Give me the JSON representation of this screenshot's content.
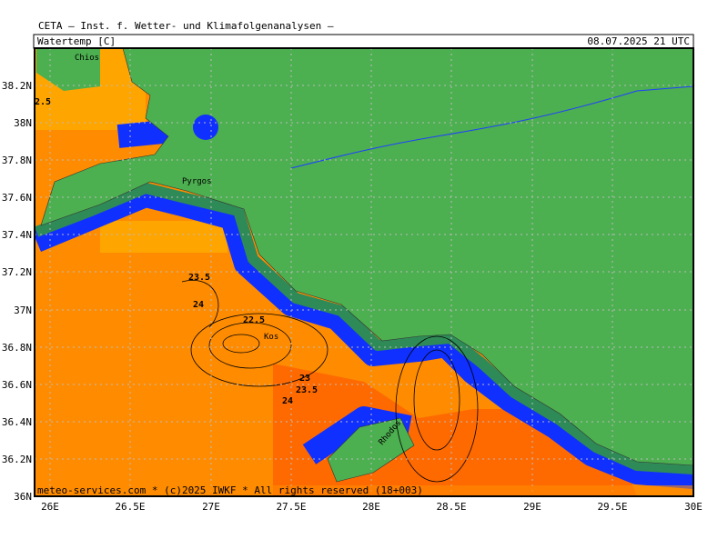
{
  "header": {
    "title": "CETA — Inst. f. Wetter- und Klimafolgenanalysen —",
    "variable": "Watertemp [C]",
    "time": "08.07.2025 21 UTC"
  },
  "lat_labels": [
    "38.2N",
    "38N",
    "37.8N",
    "37.6N",
    "37.4N",
    "37.2N",
    "37N",
    "36.8N",
    "36.6N",
    "36.4N",
    "36.2N",
    "36N"
  ],
  "lon_labels": [
    "26E",
    "26.5E",
    "27E",
    "27.5E",
    "28E",
    "28.5E",
    "29E",
    "29.5E",
    "30E"
  ],
  "places": [
    "Chios",
    "Pyrgos",
    "Kos",
    "Rhodos"
  ],
  "contour_labels": [
    "2.5",
    "23.5",
    "24",
    "22.5",
    "23",
    "23.5",
    "24"
  ],
  "footer": "meteo-services.com * (c)2025 IWKF * All rights reserved (18+003)"
}
